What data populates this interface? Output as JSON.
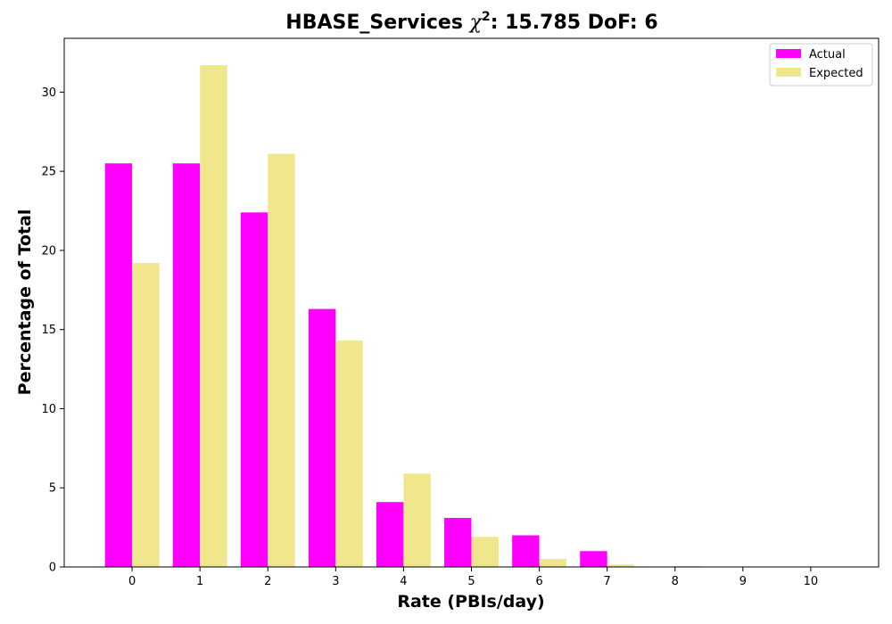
{
  "chart_data": {
    "type": "bar",
    "title": "HBASE_Services",
    "title_chi": "χ",
    "title_sup": "2",
    "title_rest": ": 15.785 DoF: 6",
    "xlabel": "Rate (PBIs/day)",
    "ylabel": "Percentage of Total",
    "categories": [
      "0",
      "1",
      "2",
      "3",
      "4",
      "5",
      "6",
      "7",
      "8",
      "9",
      "10"
    ],
    "series": [
      {
        "name": "Actual",
        "color": "#ff00ff",
        "values": [
          25.5,
          25.5,
          22.4,
          16.3,
          4.1,
          3.1,
          2.0,
          1.0,
          0,
          0,
          0
        ]
      },
      {
        "name": "Expected",
        "color": "#f0e68c",
        "values": [
          19.2,
          31.7,
          26.1,
          14.3,
          5.9,
          1.9,
          0.5,
          0.15,
          0.05,
          0,
          0
        ]
      }
    ],
    "ylim": [
      0,
      33.4
    ],
    "yticks": [
      0,
      5,
      10,
      15,
      20,
      25,
      30
    ],
    "grid": false,
    "legend_position": "top-right"
  }
}
